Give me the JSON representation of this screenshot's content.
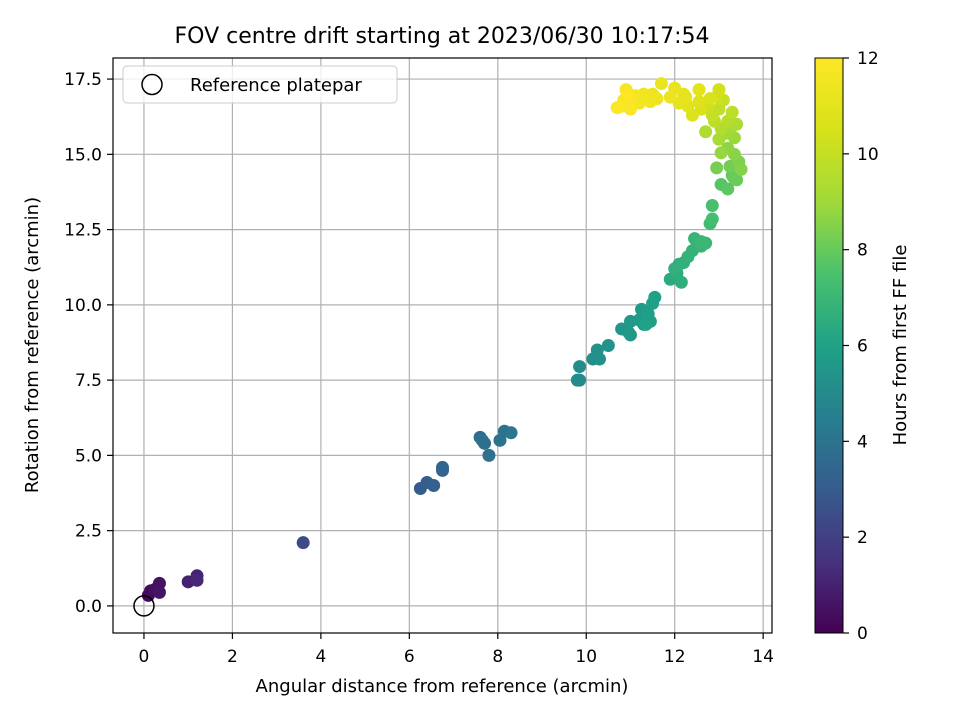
{
  "chart_data": {
    "type": "scatter",
    "title": "FOV centre drift starting at 2023/06/30 10:17:54",
    "xlabel": "Angular distance from reference (arcmin)",
    "ylabel": "Rotation from reference (arcmin)",
    "xlim": [
      -0.7,
      14.2
    ],
    "ylim": [
      -0.9,
      18.2
    ],
    "xticks": [
      0,
      2,
      4,
      6,
      8,
      10,
      12,
      14
    ],
    "yticks": [
      0.0,
      2.5,
      5.0,
      7.5,
      10.0,
      12.5,
      15.0,
      17.5
    ],
    "xtick_labels": [
      "0",
      "2",
      "4",
      "6",
      "8",
      "10",
      "12",
      "14"
    ],
    "ytick_labels": [
      "0.0",
      "2.5",
      "5.0",
      "7.5",
      "10.0",
      "12.5",
      "15.0",
      "17.5"
    ],
    "grid": true,
    "legend": {
      "placement": "top-left",
      "entries": [
        "Reference platepar"
      ]
    },
    "colorbar": {
      "label": "Hours from first FF file",
      "colormap": "viridis",
      "range": [
        0,
        12
      ],
      "ticks": [
        0,
        2,
        4,
        6,
        8,
        10,
        12
      ],
      "tick_labels": [
        "0",
        "2",
        "4",
        "6",
        "8",
        "10",
        "12"
      ]
    },
    "reference_point": {
      "name": "Reference platepar",
      "x": 0,
      "y": 0
    },
    "series": [
      {
        "fields": [
          "x",
          "y",
          "hours"
        ],
        "points": [
          [
            0.1,
            0.35,
            0.2
          ],
          [
            0.15,
            0.5,
            0.3
          ],
          [
            0.25,
            0.55,
            0.4
          ],
          [
            0.35,
            0.75,
            0.5
          ],
          [
            0.35,
            0.45,
            0.6
          ],
          [
            1.0,
            0.8,
            1.0
          ],
          [
            1.2,
            1.0,
            1.1
          ],
          [
            1.2,
            0.85,
            1.2
          ],
          [
            3.6,
            2.1,
            2.4
          ],
          [
            6.25,
            3.9,
            3.0
          ],
          [
            6.4,
            4.1,
            3.1
          ],
          [
            6.55,
            4.0,
            3.2
          ],
          [
            6.75,
            4.5,
            3.3
          ],
          [
            6.75,
            4.6,
            3.4
          ],
          [
            7.6,
            5.6,
            3.7
          ],
          [
            7.7,
            5.4,
            3.8
          ],
          [
            7.65,
            5.5,
            3.85
          ],
          [
            7.8,
            5.0,
            3.9
          ],
          [
            8.05,
            5.5,
            4.0
          ],
          [
            8.15,
            5.8,
            4.05
          ],
          [
            8.3,
            5.75,
            4.1
          ],
          [
            9.8,
            7.5,
            5.0
          ],
          [
            9.85,
            7.5,
            5.05
          ],
          [
            9.85,
            7.95,
            5.1
          ],
          [
            10.15,
            8.2,
            5.2
          ],
          [
            10.3,
            8.2,
            5.25
          ],
          [
            10.25,
            8.5,
            5.3
          ],
          [
            10.5,
            8.65,
            5.35
          ],
          [
            10.8,
            9.2,
            5.5
          ],
          [
            10.95,
            9.1,
            5.55
          ],
          [
            11.0,
            9.45,
            5.6
          ],
          [
            11.0,
            9.0,
            5.65
          ],
          [
            11.2,
            9.5,
            5.7
          ],
          [
            11.25,
            9.85,
            5.75
          ],
          [
            11.3,
            9.35,
            5.8
          ],
          [
            11.4,
            9.7,
            5.85
          ],
          [
            11.45,
            9.45,
            5.9
          ],
          [
            11.5,
            10.05,
            5.95
          ],
          [
            11.55,
            10.25,
            6.0
          ],
          [
            11.35,
            9.35,
            6.05
          ],
          [
            11.9,
            10.85,
            6.4
          ],
          [
            12.05,
            11.05,
            6.5
          ],
          [
            12.15,
            10.75,
            6.55
          ],
          [
            12.1,
            11.35,
            6.6
          ],
          [
            12.0,
            11.2,
            6.65
          ],
          [
            12.2,
            11.4,
            6.7
          ],
          [
            12.3,
            11.6,
            6.75
          ],
          [
            12.4,
            11.8,
            6.8
          ],
          [
            12.45,
            12.2,
            6.85
          ],
          [
            12.6,
            11.95,
            6.9
          ],
          [
            12.7,
            12.05,
            6.95
          ],
          [
            12.6,
            12.1,
            7.0
          ],
          [
            12.8,
            12.7,
            7.2
          ],
          [
            12.85,
            12.85,
            7.3
          ],
          [
            12.85,
            13.3,
            7.4
          ],
          [
            13.05,
            14.0,
            7.7
          ],
          [
            13.2,
            13.85,
            7.8
          ],
          [
            13.3,
            14.3,
            7.9
          ],
          [
            13.35,
            14.2,
            8.0
          ],
          [
            13.4,
            14.15,
            8.1
          ],
          [
            13.25,
            14.6,
            8.2
          ],
          [
            12.95,
            14.55,
            8.3
          ],
          [
            13.45,
            14.75,
            8.4
          ],
          [
            13.5,
            14.5,
            8.5
          ],
          [
            13.35,
            15.0,
            8.6
          ],
          [
            13.2,
            15.2,
            8.7
          ],
          [
            13.05,
            15.05,
            8.8
          ],
          [
            13.35,
            15.55,
            8.9
          ],
          [
            13.15,
            15.7,
            9.0
          ],
          [
            13.3,
            15.95,
            9.1
          ],
          [
            13.0,
            15.5,
            9.2
          ],
          [
            13.4,
            16.0,
            9.3
          ],
          [
            12.7,
            15.75,
            9.4
          ],
          [
            13.05,
            15.85,
            9.5
          ],
          [
            13.2,
            16.1,
            9.6
          ],
          [
            13.3,
            16.4,
            9.7
          ],
          [
            12.9,
            16.1,
            9.8
          ],
          [
            13.0,
            16.5,
            9.9
          ],
          [
            12.85,
            16.3,
            10.0
          ],
          [
            13.1,
            16.8,
            10.1
          ],
          [
            12.75,
            16.6,
            10.2
          ],
          [
            12.95,
            16.9,
            10.3
          ],
          [
            13.0,
            17.15,
            10.4
          ],
          [
            12.6,
            16.5,
            10.5
          ],
          [
            12.8,
            16.85,
            10.6
          ],
          [
            12.4,
            16.3,
            10.7
          ],
          [
            12.55,
            16.75,
            10.8
          ],
          [
            12.3,
            16.6,
            10.9
          ],
          [
            12.55,
            17.15,
            11.0
          ],
          [
            12.25,
            16.9,
            11.05
          ],
          [
            12.1,
            16.7,
            11.1
          ],
          [
            12.2,
            17.0,
            11.15
          ],
          [
            12.0,
            17.2,
            11.2
          ],
          [
            11.9,
            16.9,
            11.25
          ],
          [
            11.7,
            17.35,
            11.3
          ],
          [
            11.6,
            16.85,
            11.35
          ],
          [
            11.5,
            17.0,
            11.4
          ],
          [
            11.45,
            16.75,
            11.45
          ],
          [
            11.3,
            17.0,
            11.5
          ],
          [
            11.3,
            16.8,
            11.55
          ],
          [
            11.2,
            16.7,
            11.6
          ],
          [
            11.1,
            16.95,
            11.65
          ],
          [
            11.05,
            16.85,
            11.7
          ],
          [
            10.9,
            17.15,
            11.75
          ],
          [
            10.85,
            16.8,
            11.8
          ],
          [
            10.8,
            16.6,
            11.85
          ],
          [
            11.0,
            16.5,
            11.9
          ],
          [
            10.7,
            16.55,
            11.95
          ],
          [
            10.95,
            16.95,
            12.0
          ]
        ]
      }
    ]
  }
}
